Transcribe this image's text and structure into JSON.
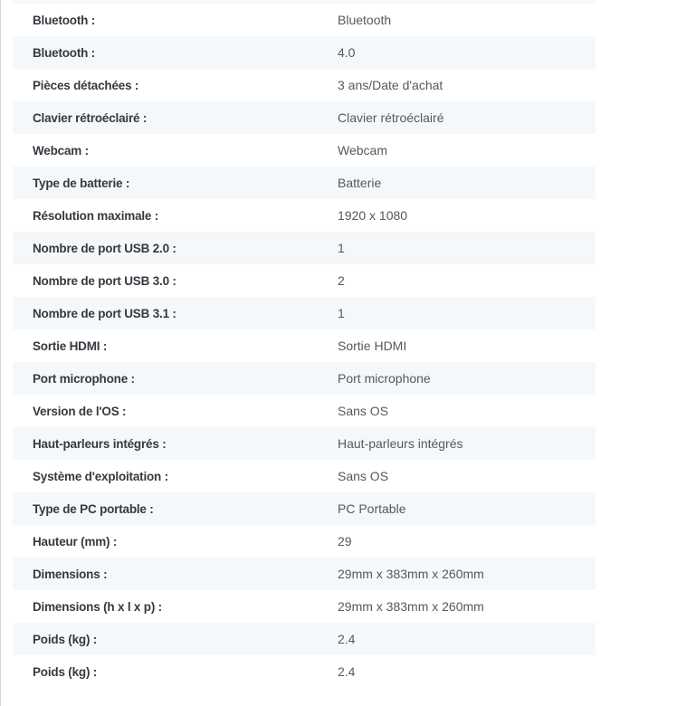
{
  "page": {
    "background_color": "#ffffff",
    "left_edge_line_color": "#d6d8da"
  },
  "table": {
    "row_shade_color": "#f5f8fa",
    "label_color": "#343a40",
    "value_color": "#54595e",
    "rows": [
      {
        "label": "Bluetooth :",
        "value": "Bluetooth"
      },
      {
        "label": "Bluetooth :",
        "value": "4.0"
      },
      {
        "label": "Pièces détachées :",
        "value": "3 ans/Date d'achat"
      },
      {
        "label": "Clavier rétroéclairé :",
        "value": "Clavier rétroéclairé"
      },
      {
        "label": "Webcam :",
        "value": "Webcam"
      },
      {
        "label": "Type de batterie :",
        "value": "Batterie"
      },
      {
        "label": "Résolution maximale :",
        "value": "1920 x 1080"
      },
      {
        "label": "Nombre de port USB 2.0 :",
        "value": "1"
      },
      {
        "label": "Nombre de port USB 3.0 :",
        "value": "2"
      },
      {
        "label": "Nombre de port USB 3.1 :",
        "value": "1"
      },
      {
        "label": "Sortie HDMI :",
        "value": "Sortie HDMI"
      },
      {
        "label": "Port microphone :",
        "value": "Port microphone"
      },
      {
        "label": "Version de l'OS :",
        "value": "Sans OS"
      },
      {
        "label": "Haut-parleurs intégrés :",
        "value": "Haut-parleurs intégrés"
      },
      {
        "label": "Système d'exploitation :",
        "value": "Sans OS"
      },
      {
        "label": "Type de PC portable :",
        "value": "PC Portable"
      },
      {
        "label": "Hauteur (mm) :",
        "value": "29"
      },
      {
        "label": "Dimensions :",
        "value": "29mm x 383mm x 260mm"
      },
      {
        "label": "Dimensions (h x l x p) :",
        "value": "29mm x 383mm x 260mm"
      },
      {
        "label": "Poids (kg) :",
        "value": "2.4"
      },
      {
        "label": "Poids (kg) :",
        "value": "2.4"
      }
    ]
  }
}
